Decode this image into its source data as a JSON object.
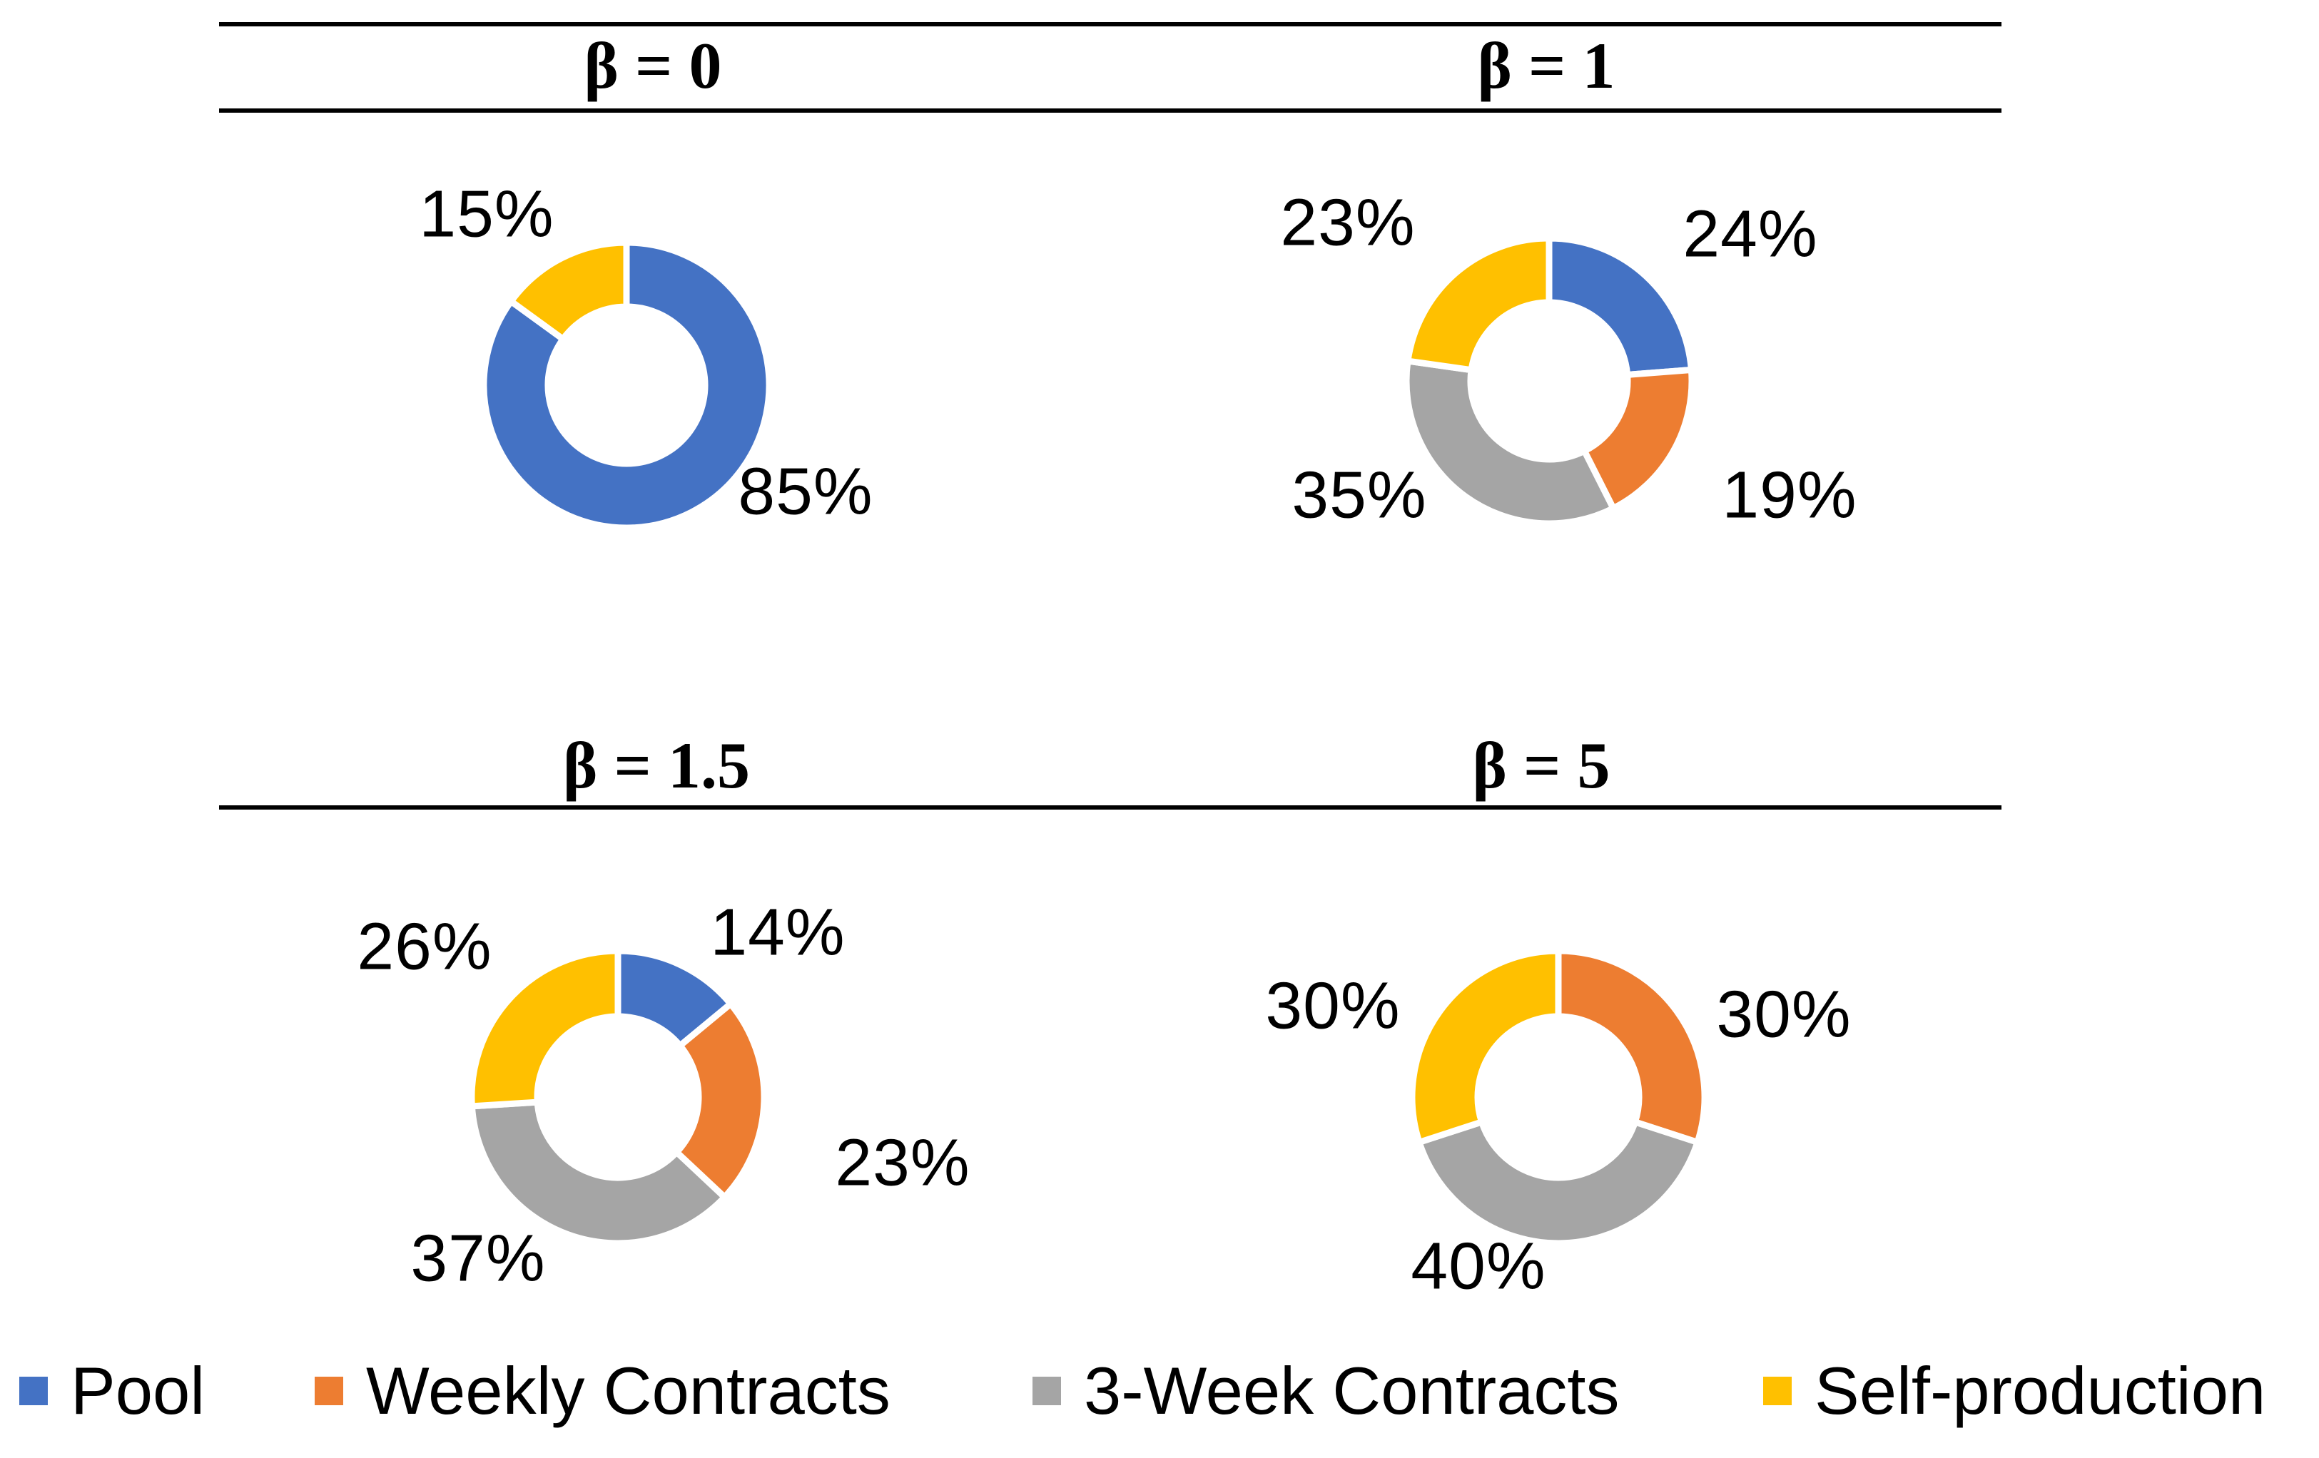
{
  "figure": {
    "background": "#ffffff",
    "rule_color": "#000000"
  },
  "palette": {
    "pool": "#4472C4",
    "weekly_contracts": "#ED7D31",
    "three_week_contracts": "#A5A5A5",
    "self_production": "#FFC000"
  },
  "legend": {
    "position": "bottom",
    "items": [
      {
        "label": "Pool",
        "color": "#4472C4"
      },
      {
        "label": "Weekly Contracts",
        "color": "#ED7D31"
      },
      {
        "label": "3-Week Contracts",
        "color": "#A5A5A5"
      },
      {
        "label": "Self-production",
        "color": "#FFC000"
      }
    ]
  },
  "chart_data": [
    {
      "type": "pie",
      "subtype": "donut",
      "title": "β = 0",
      "categories": [
        "Pool",
        "Weekly Contracts",
        "3-Week Contracts",
        "Self-production"
      ],
      "values": [
        85,
        0,
        0,
        15
      ],
      "colors": [
        "#4472C4",
        "#ED7D31",
        "#A5A5A5",
        "#FFC000"
      ],
      "labels": {
        "pool": "85%",
        "self": "15%"
      }
    },
    {
      "type": "pie",
      "subtype": "donut",
      "title": "β = 1",
      "categories": [
        "Pool",
        "Weekly Contracts",
        "3-Week Contracts",
        "Self-production"
      ],
      "values": [
        24,
        19,
        35,
        23
      ],
      "colors": [
        "#4472C4",
        "#ED7D31",
        "#A5A5A5",
        "#FFC000"
      ],
      "labels": {
        "pool": "24%",
        "weekly": "19%",
        "three_week": "35%",
        "self": "23%"
      }
    },
    {
      "type": "pie",
      "subtype": "donut",
      "title": "β = 1.5",
      "categories": [
        "Pool",
        "Weekly Contracts",
        "3-Week Contracts",
        "Self-production"
      ],
      "values": [
        14,
        23,
        37,
        26
      ],
      "colors": [
        "#4472C4",
        "#ED7D31",
        "#A5A5A5",
        "#FFC000"
      ],
      "labels": {
        "pool": "14%",
        "weekly": "23%",
        "three_week": "37%",
        "self": "26%"
      }
    },
    {
      "type": "pie",
      "subtype": "donut",
      "title": "β = 5",
      "categories": [
        "Pool",
        "Weekly Contracts",
        "3-Week Contracts",
        "Self-production"
      ],
      "values": [
        0,
        30,
        40,
        30
      ],
      "colors": [
        "#4472C4",
        "#ED7D31",
        "#A5A5A5",
        "#FFC000"
      ],
      "labels": {
        "weekly": "30%",
        "three_week": "40%",
        "self": "30%"
      }
    }
  ]
}
